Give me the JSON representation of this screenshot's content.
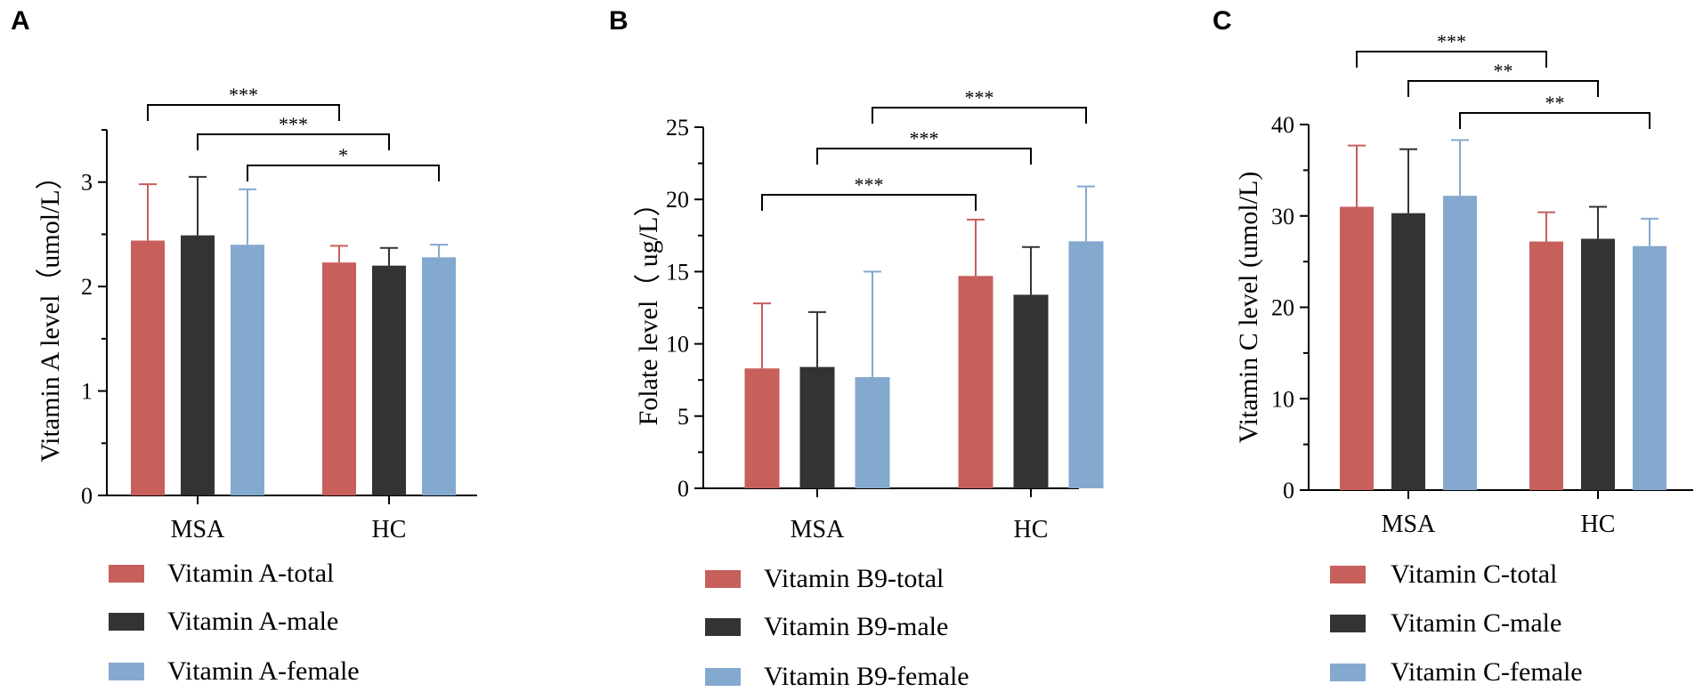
{
  "colors": {
    "total": "#C75F5B",
    "male": "#333333",
    "female": "#84A9CE",
    "axis": "#000000"
  },
  "chart_data": [
    {
      "panel": "A",
      "type": "bar",
      "ylabel": "Vitamin A level（umol/L）",
      "ylim": [
        0,
        3.5
      ],
      "yticks": [
        0,
        1,
        2,
        3
      ],
      "categories": [
        "MSA",
        "HC"
      ],
      "series": [
        {
          "name": "Vitamin A-total",
          "key": "total",
          "values": [
            2.44,
            2.23
          ],
          "errors": [
            0.54,
            0.16
          ]
        },
        {
          "name": "Vitamin A-male",
          "key": "male",
          "values": [
            2.49,
            2.2
          ],
          "errors": [
            0.56,
            0.17
          ]
        },
        {
          "name": "Vitamin A-female",
          "key": "female",
          "values": [
            2.4,
            2.28
          ],
          "errors": [
            0.53,
            0.12
          ]
        }
      ],
      "significance": [
        {
          "from": [
            0,
            0
          ],
          "to": [
            1,
            0
          ],
          "label": "***"
        },
        {
          "from": [
            0,
            1
          ],
          "to": [
            1,
            1
          ],
          "label": "***"
        },
        {
          "from": [
            0,
            2
          ],
          "to": [
            1,
            2
          ],
          "label": "*"
        }
      ]
    },
    {
      "panel": "B",
      "type": "bar",
      "ylabel": "Folate level（ ug/L）",
      "ylim": [
        0,
        25
      ],
      "yticks": [
        0,
        5,
        10,
        15,
        20,
        25
      ],
      "categories": [
        "MSA",
        "HC"
      ],
      "series": [
        {
          "name": "Vitamin B9-total",
          "key": "total",
          "values": [
            8.3,
            14.7
          ],
          "errors": [
            4.5,
            3.9
          ]
        },
        {
          "name": "Vitamin B9-male",
          "key": "male",
          "values": [
            8.4,
            13.4
          ],
          "errors": [
            3.8,
            3.3
          ]
        },
        {
          "name": "Vitamin B9-female",
          "key": "female",
          "values": [
            7.7,
            17.1
          ],
          "errors": [
            7.3,
            3.8
          ]
        }
      ],
      "significance": [
        {
          "from": [
            0,
            0
          ],
          "to": [
            1,
            0
          ],
          "label": "***"
        },
        {
          "from": [
            0,
            1
          ],
          "to": [
            1,
            1
          ],
          "label": "***"
        },
        {
          "from": [
            0,
            2
          ],
          "to": [
            1,
            2
          ],
          "label": "***"
        }
      ]
    },
    {
      "panel": "C",
      "type": "bar",
      "ylabel": "Vitamin C level (umol/L)",
      "ylim": [
        0,
        40
      ],
      "yticks": [
        0,
        10,
        20,
        30,
        40
      ],
      "categories": [
        "MSA",
        "HC"
      ],
      "series": [
        {
          "name": "Vitamin C-total",
          "key": "total",
          "values": [
            31.0,
            27.2
          ],
          "errors": [
            6.7,
            3.2
          ]
        },
        {
          "name": "Vitamin C-male",
          "key": "male",
          "values": [
            30.3,
            27.5
          ],
          "errors": [
            7.0,
            3.5
          ]
        },
        {
          "name": "Vitamin C-female",
          "key": "female",
          "values": [
            32.2,
            26.7
          ],
          "errors": [
            6.1,
            3.0
          ]
        }
      ],
      "significance": [
        {
          "from": [
            0,
            0
          ],
          "to": [
            1,
            0
          ],
          "label": "***"
        },
        {
          "from": [
            0,
            1
          ],
          "to": [
            1,
            1
          ],
          "label": "**"
        },
        {
          "from": [
            0,
            2
          ],
          "to": [
            1,
            2
          ],
          "label": "**"
        }
      ]
    }
  ]
}
